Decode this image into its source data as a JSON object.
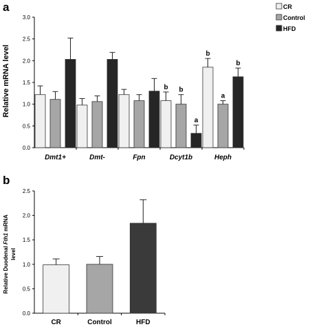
{
  "chart_data": [
    {
      "panel": "a",
      "type": "bar",
      "categories": [
        "Dmt1+",
        "Dmt-",
        "Fpn",
        "Dcyt1b",
        "Heph"
      ],
      "ylabel": "Relative mRNA level",
      "ylim": [
        0,
        3.0
      ],
      "yticks": [
        "0.0",
        "0.5",
        "1.0",
        "1.5",
        "2.0",
        "2.5",
        "3.0"
      ],
      "legend_position": "top-right",
      "series": [
        {
          "name": "CR",
          "color": "#f0f0f0",
          "values": [
            1.22,
            0.98,
            1.22,
            1.08,
            1.85
          ],
          "errors": [
            0.2,
            0.15,
            0.12,
            0.2,
            0.2
          ],
          "labels": [
            "",
            "",
            "",
            "b",
            "b"
          ]
        },
        {
          "name": "Control",
          "color": "#a6a6a6",
          "values": [
            1.11,
            1.06,
            1.08,
            1.0,
            1.0
          ],
          "errors": [
            0.18,
            0.13,
            0.14,
            0.22,
            0.08
          ],
          "labels": [
            "",
            "",
            "",
            "b",
            "a"
          ]
        },
        {
          "name": "HFD",
          "color": "#262626",
          "values": [
            2.03,
            2.03,
            1.3,
            0.33,
            1.63
          ],
          "errors": [
            0.49,
            0.16,
            0.29,
            0.19,
            0.2
          ],
          "labels": [
            "",
            "",
            "",
            "a",
            "b"
          ]
        }
      ]
    },
    {
      "panel": "b",
      "type": "bar",
      "categories": [
        "CR",
        "Control",
        "HFD"
      ],
      "ylabel_parts": [
        "Relative Duodenal ",
        "Fth1",
        " mRNA",
        "level"
      ],
      "ylim": [
        0,
        2.5
      ],
      "yticks": [
        "0.0",
        "0.5",
        "1.0",
        "1.5",
        "2.0",
        "2.5"
      ],
      "values": [
        0.99,
        1.0,
        1.84
      ],
      "errors": [
        0.12,
        0.16,
        0.48
      ],
      "colors": [
        "#f0f0f0",
        "#a6a6a6",
        "#3a3a3a"
      ]
    }
  ]
}
